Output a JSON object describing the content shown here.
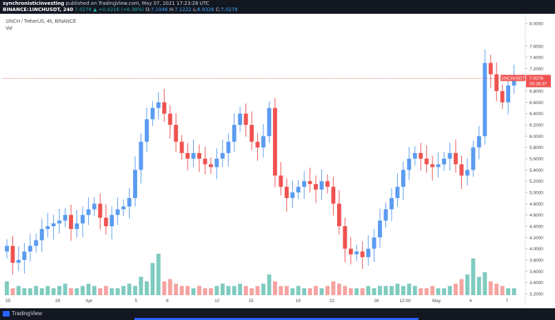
{
  "header": {
    "publisher": "synchronisticinvesting",
    "published_text": "published on TradingView.com, May 07, 2021 17:23:28 UTC",
    "symbol": "BINANCE:1INCHUSDT, 240",
    "last": "7.0278",
    "change": "+0.4216 (+6.38%)",
    "o_label": "O:",
    "o": "7.1046",
    "h_label": "H:",
    "h": "7.1222",
    "l_label": "L:",
    "l": "6.9326",
    "c_label": "C:",
    "c": "7.0278"
  },
  "legend": {
    "title": "1INCH / TetherUS, 4h, BINANCE",
    "vol_label": "Vol"
  },
  "footer": {
    "brand": "TradingView"
  },
  "colors": {
    "up": "#5b9cf0",
    "down": "#ef5350",
    "vol_up": "#7fcbc0",
    "vol_down": "#f5a3a1",
    "price_tag": "#ef5350",
    "bg": "#ffffff"
  },
  "chart_data": {
    "type": "candlestick",
    "symbol": "1INCH / TetherUS, 4h, BINANCE",
    "y_ticks": [
      "8.0000",
      "7.6000",
      "7.4000",
      "7.2000",
      "6.8000",
      "6.6000",
      "6.4000",
      "6.2000",
      "6.0000",
      "5.8000",
      "5.6000",
      "5.4000",
      "5.2000",
      "5.0000",
      "4.8000",
      "4.6000",
      "4.4000",
      "4.2000",
      "4.0000",
      "3.8000",
      "3.6000",
      "3.4000",
      "3.2000"
    ],
    "x_ticks": [
      "25",
      "29",
      "Apr",
      "5",
      "8",
      "12",
      "15",
      "19",
      "22",
      "26",
      "12:00",
      "May",
      "4",
      "7"
    ],
    "ylim": [
      3.15,
      8.1
    ],
    "current_price_label": "1INCHUSDT",
    "current_price": "7.0278",
    "countdown": "00:36:37",
    "series": [
      {
        "name": "1INCHUSDT",
        "close_path": [
          4.05,
          3.75,
          3.8,
          3.95,
          4.05,
          4.15,
          4.35,
          4.4,
          4.45,
          4.5,
          4.6,
          4.35,
          4.45,
          4.6,
          4.7,
          4.8,
          4.55,
          4.4,
          4.6,
          4.7,
          4.75,
          4.9,
          5.4,
          5.9,
          6.3,
          6.5,
          6.6,
          6.4,
          6.2,
          5.9,
          5.7,
          5.6,
          5.7,
          5.6,
          5.5,
          5.45,
          5.6,
          5.7,
          5.9,
          6.2,
          6.4,
          6.2,
          5.9,
          5.8,
          6.0,
          6.5,
          5.3,
          5.1,
          4.9,
          5.0,
          5.1,
          5.2,
          5.15,
          5.05,
          5.2,
          5.1,
          4.8,
          4.4,
          4.0,
          3.9,
          3.95,
          3.85,
          4.0,
          4.2,
          4.5,
          4.7,
          4.9,
          5.1,
          5.4,
          5.6,
          5.7,
          5.6,
          5.5,
          5.45,
          5.5,
          5.6,
          5.7,
          5.5,
          5.3,
          5.4,
          5.8,
          6.0,
          7.3,
          7.1,
          6.8,
          6.6,
          6.9,
          7.03
        ]
      }
    ],
    "volume": [
      6,
      3,
      4,
      3,
      3,
      4,
      3,
      4,
      3,
      4,
      5,
      3,
      3,
      4,
      5,
      4,
      3,
      4,
      3,
      3,
      4,
      5,
      4,
      8,
      6,
      14,
      18,
      6,
      7,
      5,
      4,
      4,
      3,
      4,
      3,
      3,
      4,
      5,
      4,
      4,
      5,
      4,
      3,
      4,
      5,
      9,
      6,
      4,
      4,
      3,
      4,
      3,
      3,
      4,
      3,
      4,
      6,
      5,
      4,
      3,
      3,
      3,
      4,
      3,
      4,
      4,
      4,
      5,
      4,
      5,
      4,
      3,
      3,
      4,
      3,
      3,
      4,
      5,
      7,
      9,
      16,
      8,
      10,
      6,
      5,
      4,
      3,
      3
    ]
  }
}
